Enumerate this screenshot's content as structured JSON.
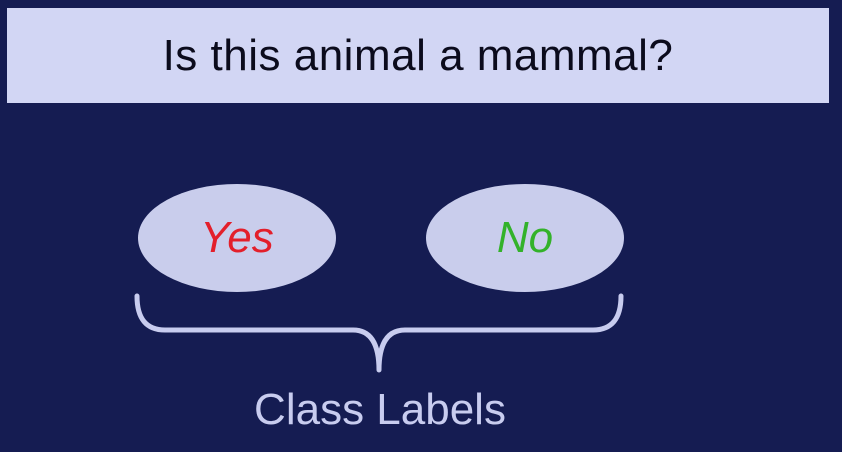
{
  "title": "Is this animal a mammal?",
  "classes": {
    "yes": {
      "label": "Yes",
      "color": "#e31f2b"
    },
    "no": {
      "label": "No",
      "color": "#33b22a"
    }
  },
  "footer_label": "Class Labels",
  "colors": {
    "background": "#151c52",
    "title_bar": "#d2d6f4",
    "oval_fill": "#c9cdec",
    "brace": "#c8ccef"
  }
}
